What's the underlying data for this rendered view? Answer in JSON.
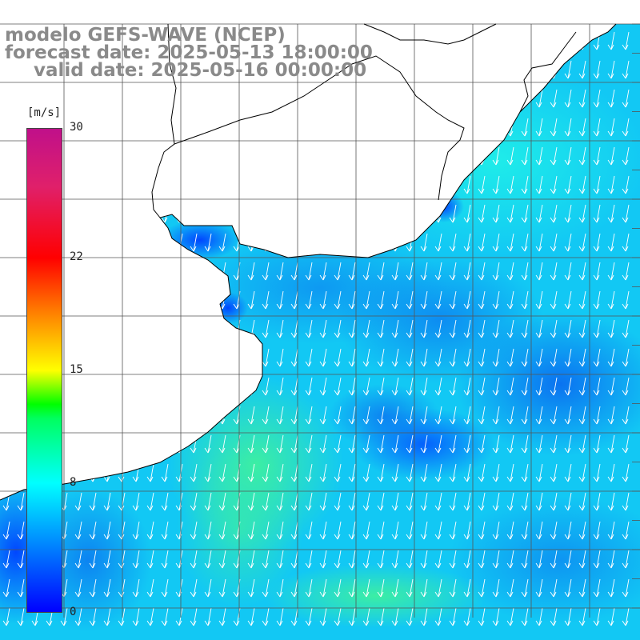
{
  "title": {
    "line1": "modelo GEFS-WAVE (NCEP)",
    "line2": "forecast date: 2025-05-13 18:00:00",
    "line3": "valid date: 2025-05-16 00:00:00"
  },
  "colorbar": {
    "units": "[m/s]",
    "ticks": [
      {
        "value": 30,
        "label": "30"
      },
      {
        "value": 22,
        "label": "22"
      },
      {
        "value": 15,
        "label": "15"
      },
      {
        "value": 8,
        "label": "8"
      },
      {
        "value": 0,
        "label": "0"
      }
    ],
    "min": 0,
    "max": 30
  },
  "map": {
    "wind_direction": "north-northeast",
    "colors": {
      "land": "#ffffff",
      "grid": "#555555",
      "coast": "#000000",
      "arrows": "#ffffff",
      "strong_wind": "#33e8a0",
      "moderate_wind": "#12d6f5",
      "weak_wind": "#0a78f0",
      "calm_wind": "#0040ff"
    }
  }
}
